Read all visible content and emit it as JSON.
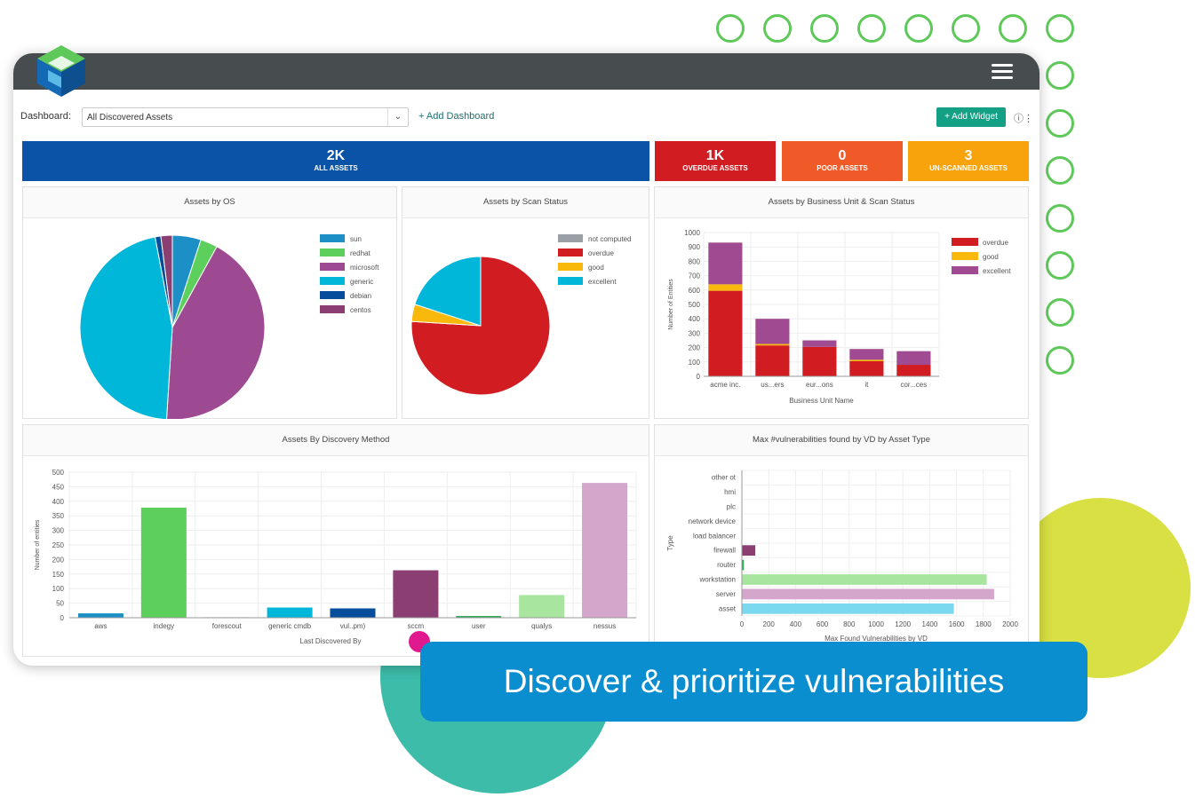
{
  "dashboard": {
    "label": "Dashboard:",
    "selected": "All Discovered Assets",
    "add_dashboard": "+ Add Dashboard",
    "add_widget": "+ Add Widget",
    "info_icon": "info-icon"
  },
  "kpis": [
    {
      "value": "2K",
      "label": "ALL ASSETS",
      "color": "#0a53a6"
    },
    {
      "value": "1K",
      "label": "OVERDUE ASSETS",
      "color": "#d11c21"
    },
    {
      "value": "0",
      "label": "POOR ASSETS",
      "color": "#f05a28"
    },
    {
      "value": "3",
      "label": "UN-SCANNED ASSETS",
      "color": "#f8a30c"
    }
  ],
  "banner": {
    "text": "Discover & prioritize vulnerabilities"
  },
  "chart_data": [
    {
      "type": "pie",
      "title": "Assets by OS",
      "labels": [
        "sun",
        "redhat",
        "microsoft",
        "generic",
        "debian",
        "centos"
      ],
      "colors": [
        "#1b8fc6",
        "#5ccf5c",
        "#9e4a92",
        "#00b7d9",
        "#064e9c",
        "#8a3e72"
      ],
      "values": [
        5,
        3,
        43,
        46,
        1,
        2
      ],
      "legend": "right"
    },
    {
      "type": "pie",
      "title": "Assets by Scan Status",
      "labels": [
        "not computed",
        "overdue",
        "good",
        "excellent"
      ],
      "colors": [
        "#9aa0a6",
        "#d11c21",
        "#f8b80c",
        "#00b7d9"
      ],
      "values": [
        0,
        76,
        4,
        20
      ],
      "legend": "right"
    },
    {
      "type": "bar",
      "stacked": true,
      "title": "Assets by Business Unit & Scan Status",
      "categories": [
        "acme inc.",
        "us...ers",
        "eur...ons",
        "it",
        "cor...ces"
      ],
      "xlabel": "Business Unit Name",
      "ylabel": "Number of Entities",
      "ylim": [
        0,
        1000
      ],
      "yticks": [
        0,
        100,
        200,
        300,
        400,
        500,
        600,
        700,
        800,
        900,
        1000
      ],
      "series": [
        {
          "name": "overdue",
          "color": "#d11c21",
          "values": [
            595,
            215,
            205,
            105,
            80
          ]
        },
        {
          "name": "good",
          "color": "#f8b80c",
          "values": [
            45,
            10,
            0,
            10,
            0
          ]
        },
        {
          "name": "excellent",
          "color": "#a04a92",
          "values": [
            290,
            175,
            45,
            75,
            95
          ]
        }
      ],
      "legend": "top-right"
    },
    {
      "type": "bar",
      "title": "Assets By Discovery Method",
      "categories": [
        "aws",
        "indegy",
        "forescout",
        "generic cmdb",
        "vul..pm)",
        "sccm",
        "user",
        "qualys",
        "nessus"
      ],
      "colors": [
        "#1b8fc6",
        "#5ccf5c",
        "#cfcfcf",
        "#00b7d9",
        "#064e9c",
        "#8a3e72",
        "#33a85a",
        "#a8e6a0",
        "#d4a6cc"
      ],
      "values": [
        15,
        378,
        2,
        35,
        32,
        163,
        6,
        78,
        463
      ],
      "xlabel": "Last Discovered By",
      "ylabel": "Number of entities",
      "ylim": [
        0,
        500
      ],
      "yticks": [
        0,
        50,
        100,
        150,
        200,
        250,
        300,
        350,
        400,
        450,
        500
      ]
    },
    {
      "type": "bar",
      "orientation": "horizontal",
      "title": "Max #vulnerabilities found by VD by Asset Type",
      "categories": [
        "other ot",
        "hmi",
        "plc",
        "network device",
        "load balancer",
        "firewall",
        "router",
        "workstation",
        "server",
        "asset"
      ],
      "colors": [
        "#999999",
        "#999999",
        "#999999",
        "#999999",
        "#999999",
        "#8a3e72",
        "#33a85a",
        "#a8e6a0",
        "#d4a6cc",
        "#7ad9ee"
      ],
      "values": [
        0,
        0,
        0,
        0,
        0,
        100,
        15,
        1825,
        1880,
        1580
      ],
      "xlabel": "Max Found Vulnerabilities by VD",
      "ylabel": "Type",
      "xlim": [
        0,
        2000
      ],
      "xticks": [
        0,
        200,
        400,
        600,
        800,
        1000,
        1200,
        1400,
        1600,
        1800,
        2000
      ]
    }
  ]
}
